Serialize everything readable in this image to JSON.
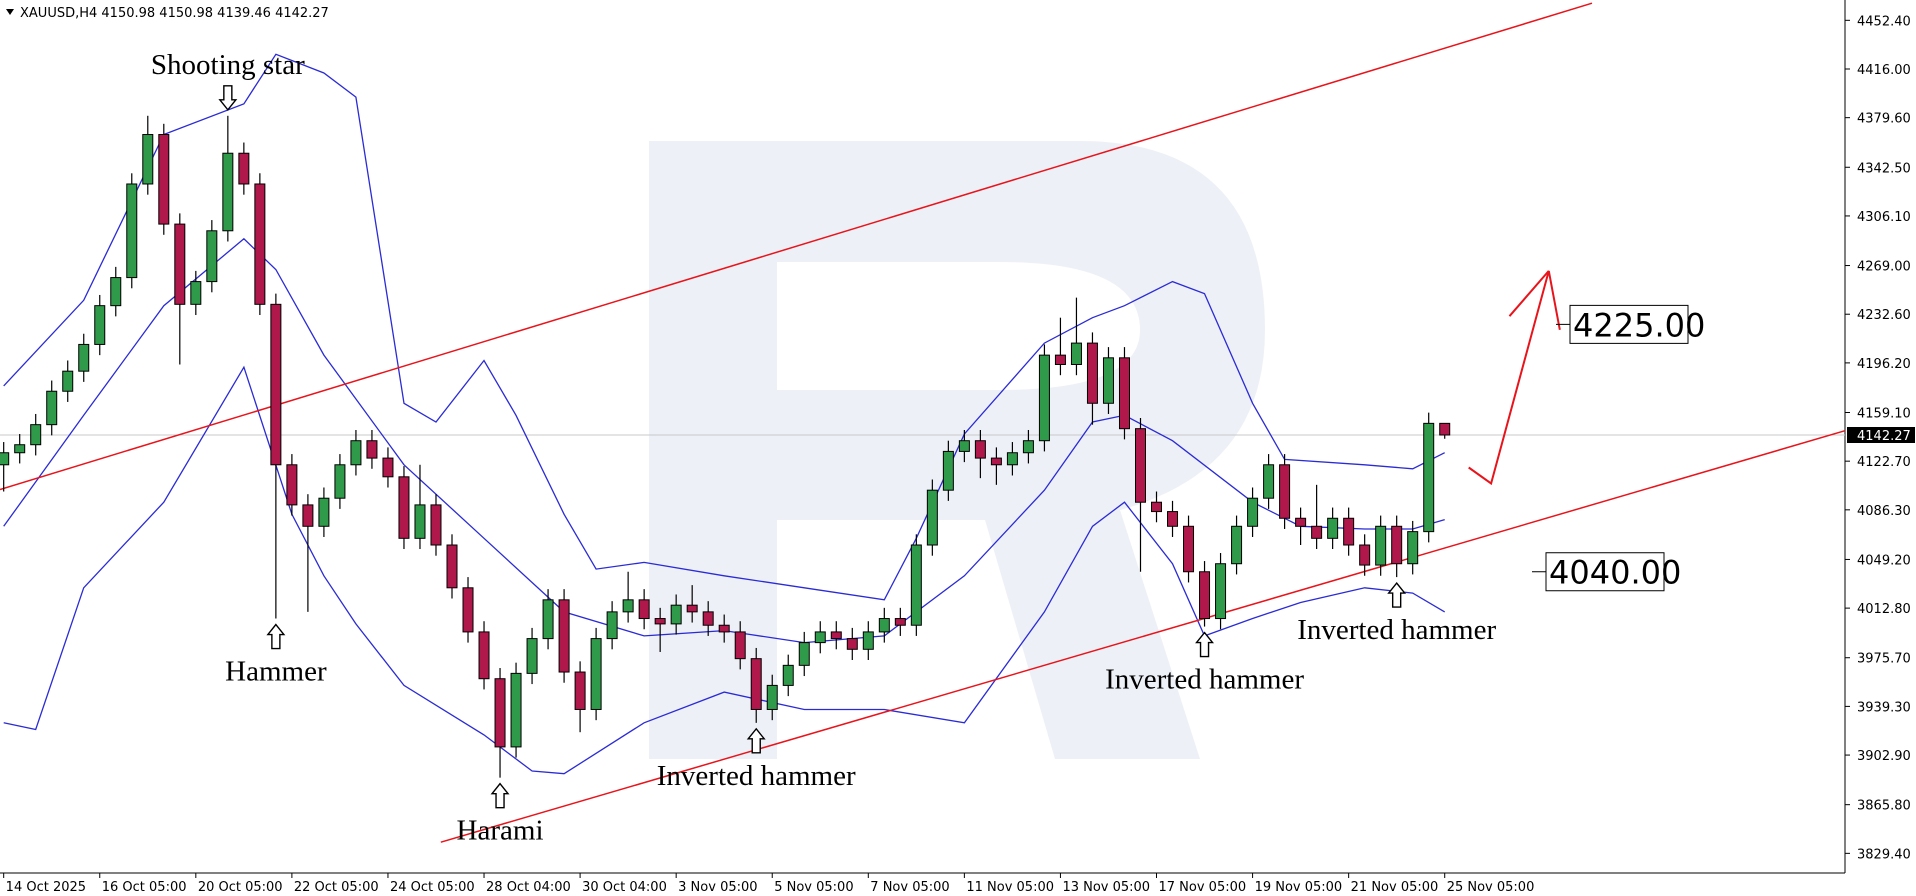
{
  "chart_data": {
    "type": "candlestick",
    "title": "XAUUSD,H4  4150.98 4150.98 4139.46 4142.27",
    "bull_color": "#2f9a4a",
    "bear_color": "#b0184c",
    "ylim": [
      3814.7,
      4466.1
    ],
    "xlim": [
      -0.23,
      115.0
    ],
    "yticks": [
      {
        "value": 4452.4,
        "label": "4452.40"
      },
      {
        "value": 4416,
        "label": "4416.00"
      },
      {
        "value": 4379.6,
        "label": "4379.60"
      },
      {
        "value": 4342.5,
        "label": "4342.50"
      },
      {
        "value": 4306.1,
        "label": "4306.10"
      },
      {
        "value": 4269,
        "label": "4269.00"
      },
      {
        "value": 4232.6,
        "label": "4232.60"
      },
      {
        "value": 4196.2,
        "label": "4196.20"
      },
      {
        "value": 4159.1,
        "label": "4159.10"
      },
      {
        "value": 4122.7,
        "label": "4122.70"
      },
      {
        "value": 4086.3,
        "label": "4086.30"
      },
      {
        "value": 4049.2,
        "label": "4049.20"
      },
      {
        "value": 4012.8,
        "label": "4012.80"
      },
      {
        "value": 3975.7,
        "label": "3975.70"
      },
      {
        "value": 3939.3,
        "label": "3939.30"
      },
      {
        "value": 3902.9,
        "label": "3902.90"
      },
      {
        "value": 3865.8,
        "label": "3865.80"
      },
      {
        "value": 3829.4,
        "label": "3829.40"
      }
    ],
    "xticks": [
      {
        "value": 0,
        "label": "14 Oct 2025"
      },
      {
        "value": 6,
        "label": "16 Oct 05:00"
      },
      {
        "value": 12,
        "label": "20 Oct 05:00"
      },
      {
        "value": 18,
        "label": "22 Oct 05:00"
      },
      {
        "value": 24,
        "label": "24 Oct 05:00"
      },
      {
        "value": 30,
        "label": "28 Oct 04:00"
      },
      {
        "value": 36,
        "label": "30 Oct 04:00"
      },
      {
        "value": 42,
        "label": "3 Nov 05:00"
      },
      {
        "value": 48,
        "label": "5 Nov 05:00"
      },
      {
        "value": 54,
        "label": "7 Nov 05:00"
      },
      {
        "value": 60,
        "label": "11 Nov 05:00"
      },
      {
        "value": 66,
        "label": "13 Nov 05:00"
      },
      {
        "value": 72,
        "label": "17 Nov 05:00"
      },
      {
        "value": 78,
        "label": "19 Nov 05:00"
      },
      {
        "value": 84,
        "label": "21 Nov 05:00"
      },
      {
        "value": 90,
        "label": "25 Nov 05:00"
      }
    ],
    "open": [
      4120,
      4129,
      4135,
      4150,
      4175,
      4190,
      4210,
      4239,
      4260,
      4330,
      4367,
      4300,
      4240,
      4257,
      4295,
      4353,
      4330,
      4240,
      4120,
      4090,
      4074,
      4095,
      4120,
      4138,
      4125,
      4111,
      4065,
      4090,
      4060,
      4028,
      3995,
      3960,
      3909,
      3964,
      3990,
      4019,
      3965,
      3937,
      3990,
      4010,
      4019,
      4005,
      4001,
      4015,
      4010,
      4000,
      3995,
      3975,
      3937,
      3955,
      3970,
      3987,
      3995,
      3990,
      3982,
      3995,
      4005,
      4000,
      4060,
      4101,
      4130,
      4138,
      4125,
      4120,
      4129,
      4138,
      4202,
      4195,
      4211,
      4166,
      4200,
      4147,
      4092,
      4085,
      4074,
      4040,
      4005,
      4046,
      4074,
      4095,
      4120,
      4080,
      4074,
      4065,
      4080,
      4060,
      4045,
      4074,
      4046,
      4070,
      4150.98
    ],
    "high": [
      4137,
      4143,
      4158,
      4183,
      4198,
      4218,
      4247,
      4268,
      4338,
      4381,
      4375,
      4308,
      4265,
      4303,
      4381,
      4361,
      4338,
      4248,
      4128,
      4098,
      4103,
      4128,
      4146,
      4146,
      4133,
      4119,
      4120,
      4098,
      4068,
      4036,
      4003,
      3968,
      3972,
      3998,
      4027,
      4027,
      3973,
      3998,
      4018,
      4040,
      4027,
      4013,
      4023,
      4030,
      4018,
      4008,
      4003,
      3983,
      3963,
      3978,
      3995,
      4003,
      4003,
      3998,
      4003,
      4013,
      4013,
      4068,
      4109,
      4138,
      4146,
      4146,
      4133,
      4137,
      4146,
      4210,
      4230,
      4245,
      4219,
      4208,
      4208,
      4155,
      4100,
      4093,
      4082,
      4048,
      4054,
      4082,
      4103,
      4128,
      4128,
      4088,
      4105,
      4088,
      4088,
      4068,
      4082,
      4082,
      4078,
      4159,
      4150.98
    ],
    "low": [
      4100,
      4121,
      4127,
      4142,
      4167,
      4182,
      4202,
      4231,
      4252,
      4322,
      4292,
      4195,
      4232,
      4249,
      4287,
      4322,
      4232,
      4005,
      4082,
      4010,
      4066,
      4087,
      4112,
      4117,
      4103,
      4057,
      4057,
      4052,
      4020,
      3987,
      3952,
      3886,
      3901,
      3956,
      3982,
      3957,
      3920,
      3929,
      3982,
      4002,
      3997,
      3980,
      3993,
      4002,
      3992,
      3987,
      3967,
      3927,
      3929,
      3947,
      3962,
      3979,
      3982,
      3974,
      3974,
      3987,
      3992,
      3992,
      4052,
      4093,
      4122,
      4110,
      4105,
      4112,
      4121,
      4130,
      4187,
      4187,
      4150,
      4158,
      4139,
      4040,
      4077,
      4066,
      4032,
      3999,
      3997,
      4038,
      4066,
      4087,
      4072,
      4060,
      4057,
      4057,
      4052,
      4037,
      4037,
      4036,
      4038,
      4062,
      4139.46
    ],
    "close": [
      4129,
      4135,
      4150,
      4175,
      4190,
      4210,
      4239,
      4260,
      4330,
      4367,
      4300,
      4240,
      4257,
      4295,
      4353,
      4330,
      4240,
      4120,
      4090,
      4074,
      4095,
      4120,
      4138,
      4125,
      4111,
      4065,
      4090,
      4060,
      4028,
      3995,
      3960,
      3909,
      3964,
      3990,
      4019,
      3965,
      3937,
      3990,
      4010,
      4019,
      4005,
      4001,
      4015,
      4010,
      4000,
      3995,
      3975,
      3937,
      3955,
      3970,
      3987,
      3995,
      3990,
      3982,
      3995,
      4005,
      4000,
      4060,
      4101,
      4130,
      4138,
      4125,
      4120,
      4129,
      4138,
      4202,
      4195,
      4211,
      4166,
      4200,
      4147,
      4092,
      4085,
      4074,
      4040,
      4005,
      4046,
      4074,
      4095,
      4120,
      4080,
      4074,
      4065,
      4080,
      4060,
      4045,
      4074,
      4046,
      4070,
      4150.98,
      4142.27
    ],
    "bands": [
      {
        "color": "#2b2bd6",
        "x": [
          0,
          5,
          10,
          15,
          17,
          20,
          22,
          25,
          27,
          30,
          32,
          35,
          37,
          40,
          45,
          50,
          55,
          57,
          60,
          65,
          68,
          70,
          73,
          75,
          78,
          80,
          85,
          88,
          90
        ],
        "values": [
          4179,
          4243,
          4367,
          4390,
          4427,
          4413,
          4395,
          4166,
          4152,
          4198,
          4157,
          4083,
          4042,
          4047,
          4037,
          4028,
          4019,
          4065,
          4143,
          4211,
          4230,
          4239,
          4257,
          4248,
          4166,
          4124,
          4120,
          4117,
          4129
        ]
      },
      {
        "color": "#2b2bd6",
        "x": [
          0,
          5,
          10,
          15,
          17,
          20,
          25,
          30,
          35,
          40,
          45,
          50,
          55,
          60,
          65,
          68,
          70,
          73,
          78,
          81,
          85,
          88,
          90
        ],
        "values": [
          4074,
          4157,
          4239,
          4289,
          4266,
          4202,
          4120,
          4065,
          4010,
          3992,
          3996,
          3987,
          3992,
          4037,
          4101,
          4152,
          4157,
          4138,
          4092,
          4074,
          4072,
          4072,
          4079
        ]
      },
      {
        "color": "#2b2bd6",
        "x": [
          0,
          2,
          5,
          10,
          15,
          18,
          20,
          22,
          25,
          30,
          33,
          35,
          40,
          45,
          50,
          55,
          60,
          65,
          68,
          70,
          73,
          75,
          78,
          81,
          85,
          88,
          90
        ],
        "values": [
          3927,
          3922,
          4028,
          4092,
          4193,
          4083,
          4037,
          4001,
          3955,
          3918,
          3891,
          3889,
          3927,
          3950,
          3937,
          3937,
          3927,
          4010,
          4074,
          4092,
          4046,
          3992,
          4005,
          4017,
          4028,
          4024,
          4010
        ]
      }
    ],
    "channel": [
      {
        "color": "#e8141b",
        "x": [
          -0.23,
          99.2
        ],
        "values": [
          4101.5,
          4465.2
        ]
      },
      {
        "color": "#e8141b",
        "x": [
          27.3,
          115.0
        ],
        "values": [
          3837.7,
          4145.5
        ]
      }
    ],
    "forecast": {
      "color": "#e8141b",
      "x": [
        91.5,
        92.9,
        96.5
      ],
      "values": [
        4118,
        4106,
        4265
      ]
    },
    "last": {
      "value": 4142.27,
      "label": "4142.27"
    },
    "levels": [
      {
        "label": "4225.00",
        "value": 4225
      },
      {
        "label": "4040.00",
        "value": 4040
      }
    ],
    "annotations": [
      {
        "label": "Shooting star",
        "x": 14,
        "y": 4381,
        "dir": "down"
      },
      {
        "label": "Hammer",
        "x": 17,
        "y": 4005,
        "dir": "up"
      },
      {
        "label": "Harami",
        "x": 31,
        "y": 3886,
        "dir": "up"
      },
      {
        "label": "Inverted hammer",
        "x": 47,
        "y": 3927,
        "dir": "up"
      },
      {
        "label": "Inverted hammer",
        "x": 75,
        "y": 3999,
        "dir": "up"
      },
      {
        "label": "Inverted hammer",
        "x": 87,
        "y": 4036,
        "dir": "up"
      }
    ]
  }
}
